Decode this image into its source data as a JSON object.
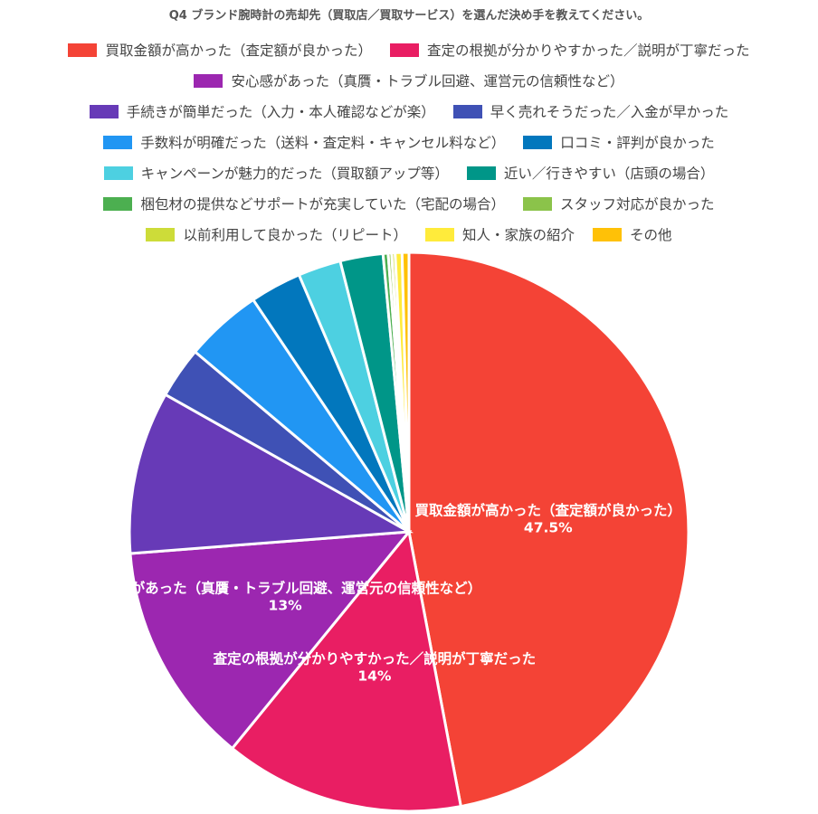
{
  "chart_data": {
    "type": "pie",
    "title": "Q4 ブランド腕時計の売却先（買取店／買取サービス）を選んだ決め手を教えてください。",
    "legend_position": "top",
    "slices": [
      {
        "label": "買取金額が高かった（査定額が良かった）",
        "value": 47.5,
        "color": "#F44336",
        "display": "47.5%"
      },
      {
        "label": "査定の根拠が分かりやすかった／説明が丁寧だった",
        "value": 14,
        "color": "#E91E63",
        "display": "14%"
      },
      {
        "label": "安心感があった（真贋・トラブル回避、運営元の信頼性など）",
        "value": 13,
        "color": "#9C27B0",
        "display": "13%"
      },
      {
        "label": "手続きが簡単だった（入力・本人確認などが楽）",
        "value": 9.5,
        "color": "#673AB7"
      },
      {
        "label": "早く売れそうだった／入金が早かった",
        "value": 3,
        "color": "#3F51B5"
      },
      {
        "label": "手数料が明確だった（送料・査定料・キャンセル料など）",
        "value": 4.5,
        "color": "#2196F3"
      },
      {
        "label": "口コミ・評判が良かった",
        "value": 3,
        "color": "#0277BD"
      },
      {
        "label": "キャンペーンが魅力的だった（買取額アップ等）",
        "value": 2.5,
        "color": "#4DD0E1"
      },
      {
        "label": "近い／行きやすい（店頭の場合）",
        "value": 2.5,
        "color": "#009688"
      },
      {
        "label": "梱包材の提供などサポートが充実していた（宅配の場合）",
        "value": 0.3,
        "color": "#4CAF50"
      },
      {
        "label": "スタッフ対応が良かった",
        "value": 0.2,
        "color": "#8BC34A"
      },
      {
        "label": "以前利用して良かった（リピート）",
        "value": 0.2,
        "color": "#CDDC39"
      },
      {
        "label": "知人・家族の紹介",
        "value": 0.4,
        "color": "#FFEB3B"
      },
      {
        "label": "その他",
        "value": 0.4,
        "color": "#FFC107"
      }
    ]
  }
}
